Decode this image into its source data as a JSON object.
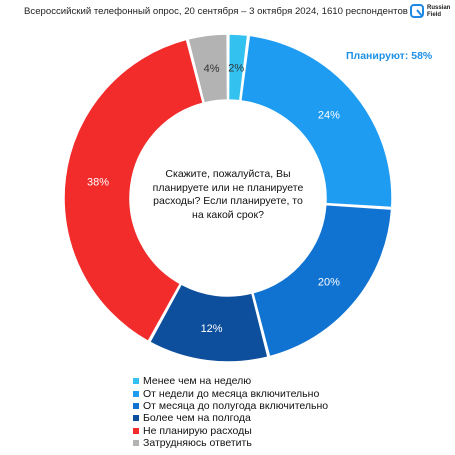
{
  "header": {
    "title": "Всероссийский телефонный опрос, 20 сентября – 3 октября 2024, 1610 респондентов"
  },
  "logo": {
    "line1": "Russian",
    "line2": "Field",
    "accent_color": "#1e88e5"
  },
  "annotation": "Планируют: 58%",
  "chart_data": {
    "type": "pie",
    "variant": "donut",
    "center_text": "Скажите, пожалуйста, Вы планируете или не планируете расходы? Если планируете, то на какой срок?",
    "legend_position": "bottom",
    "slices": [
      {
        "label": "Менее чем на неделю",
        "value": 2,
        "display": "2%",
        "color": "#33c1f0"
      },
      {
        "label": "От недели до месяца включительно",
        "value": 24,
        "display": "24%",
        "color": "#1e9cf2"
      },
      {
        "label": "От месяца до полугода включительно",
        "value": 20,
        "display": "20%",
        "color": "#1173d1"
      },
      {
        "label": "Более чем на полгода",
        "value": 12,
        "display": "12%",
        "color": "#0d4f9c"
      },
      {
        "label": "Не планирую расходы",
        "value": 38,
        "display": "38%",
        "color": "#f22b2b"
      },
      {
        "label": "Затрудняюсь ответить",
        "value": 4,
        "display": "4%",
        "color": "#b3b3b3"
      }
    ]
  }
}
